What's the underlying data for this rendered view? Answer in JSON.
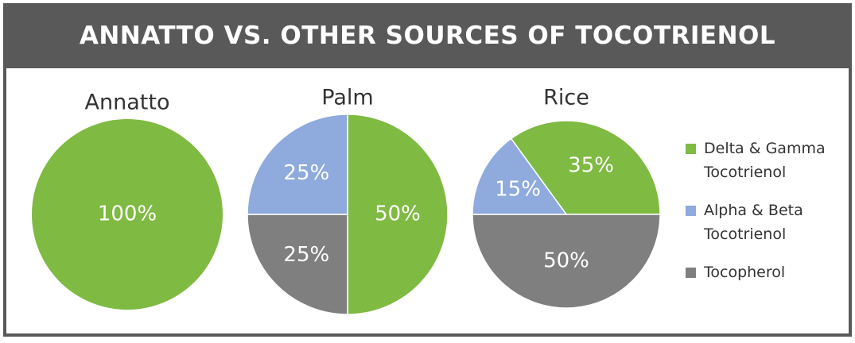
{
  "title": "ANNATTO VS. OTHER SOURCES OF TOCOTRIENOL",
  "legend": [
    {
      "name": "Delta & Gamma Tocotrienol",
      "color": "#7fba42"
    },
    {
      "name": "Alpha & Beta Tocotrienol",
      "color": "#8faadc"
    },
    {
      "name": "Tocopherol",
      "color": "#7f7f7f"
    }
  ],
  "chart_data": [
    {
      "type": "pie",
      "title": "Annatto",
      "values": [
        100,
        null,
        null
      ],
      "value_labels": [
        "100%",
        null,
        null
      ]
    },
    {
      "type": "pie",
      "title": "Palm",
      "values": [
        50,
        25,
        25
      ],
      "value_labels": [
        "50%",
        "25%",
        "25%"
      ]
    },
    {
      "type": "pie",
      "title": "Rice",
      "values": [
        35,
        15,
        50
      ],
      "value_labels": [
        "35%",
        "15%",
        "50%"
      ]
    }
  ]
}
